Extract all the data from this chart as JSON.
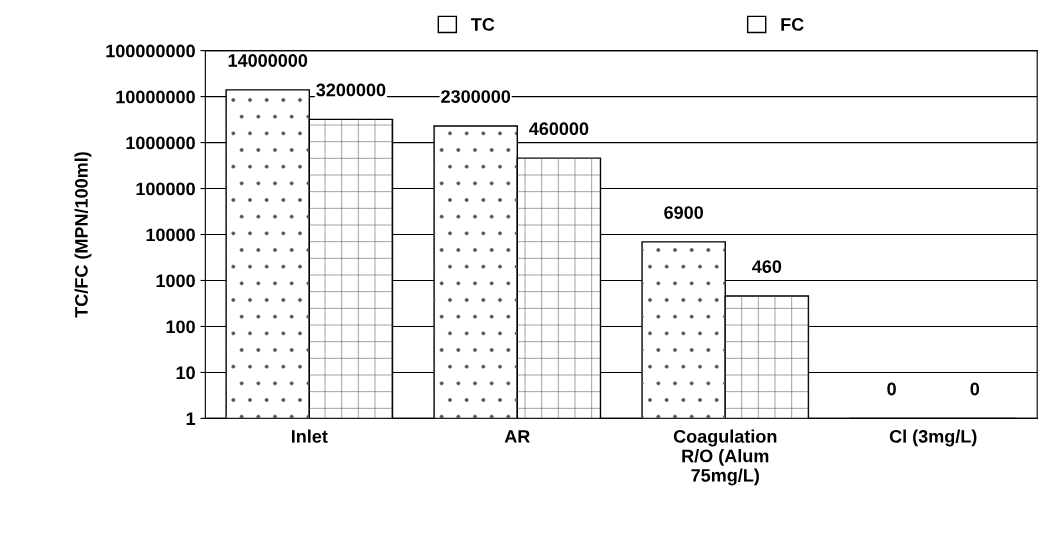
{
  "chart_data": {
    "type": "bar",
    "ylabel": "TC/FC (MPN/100ml)",
    "categories": [
      "Inlet",
      "AR",
      "Coagulation\nR/O (Alum\n75mg/L)",
      "Cl (3mg/L)"
    ],
    "series": [
      {
        "name": "TC",
        "color": "#ffffff",
        "values": [
          14000000,
          2300000,
          6900,
          null
        ],
        "value_labels": [
          "14000000",
          "2300000",
          "6900",
          "0"
        ]
      },
      {
        "name": "FC",
        "color": "#ffffff",
        "values": [
          3200000,
          460000,
          460,
          null
        ],
        "value_labels": [
          "3200000",
          "460000",
          "460",
          "0"
        ]
      }
    ],
    "log": true,
    "ylim": [
      1,
      100000000
    ],
    "yticks": [
      1,
      10,
      100,
      1000,
      10000,
      100000,
      1000000,
      10000000,
      100000000
    ],
    "grid": "y",
    "legend": "top"
  }
}
